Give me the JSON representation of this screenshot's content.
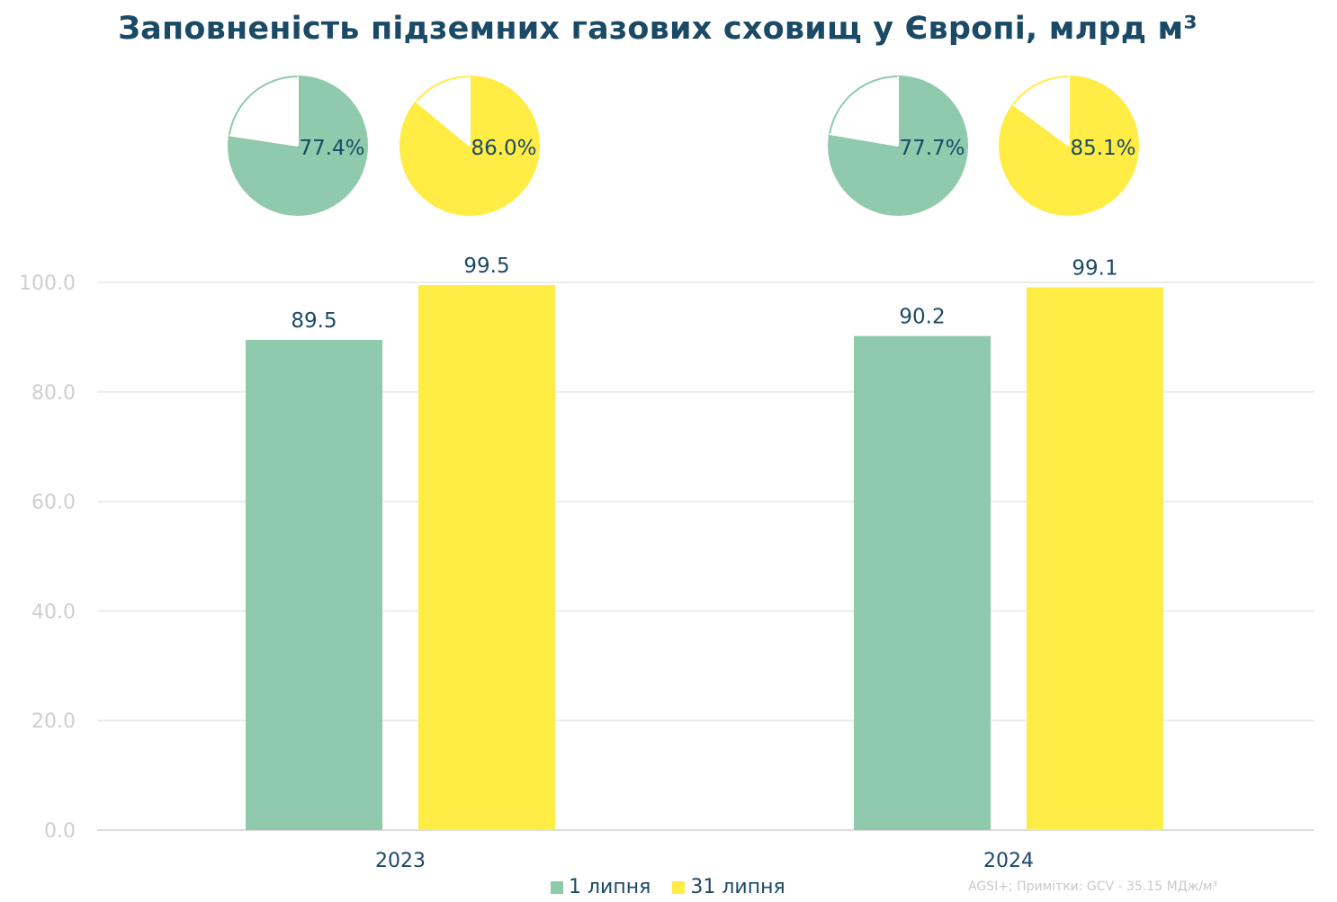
{
  "title": "Заповненість підземних газових сховищ у Європі, млрд м³",
  "source_note": "AGSI+; Примітки: GCV - 35.15 МДж/м³",
  "colors": {
    "series1": "#8fcaac",
    "series2": "#ffec45",
    "text": "#1b4a66",
    "axis_text": "#cfcfcf",
    "grid": "#ececec"
  },
  "legend": [
    {
      "label": "1 липня",
      "color": "#8fcaac"
    },
    {
      "label": "31 липня",
      "color": "#ffec45"
    }
  ],
  "chart_data": [
    {
      "type": "bar",
      "categories": [
        "2023",
        "2024"
      ],
      "series": [
        {
          "name": "1 липня",
          "values": [
            89.5,
            90.2
          ]
        },
        {
          "name": "31 липня",
          "values": [
            99.5,
            99.1
          ]
        }
      ],
      "data_labels": [
        [
          "89.5",
          "90.2"
        ],
        [
          "99.5",
          "99.1"
        ]
      ],
      "ylim": [
        0,
        100
      ],
      "yticks": [
        "0.0",
        "20.0",
        "40.0",
        "60.0",
        "80.0",
        "100.0"
      ],
      "grid": true,
      "legend_position": "bottom"
    },
    {
      "type": "pie",
      "pies": [
        {
          "category": "2023",
          "series": "1 липня",
          "value": 77.4,
          "label": "77.4%"
        },
        {
          "category": "2023",
          "series": "31 липня",
          "value": 86.0,
          "label": "86.0%"
        },
        {
          "category": "2024",
          "series": "1 липня",
          "value": 77.7,
          "label": "77.7%"
        },
        {
          "category": "2024",
          "series": "31 липня",
          "value": 85.1,
          "label": "85.1%"
        }
      ]
    }
  ]
}
